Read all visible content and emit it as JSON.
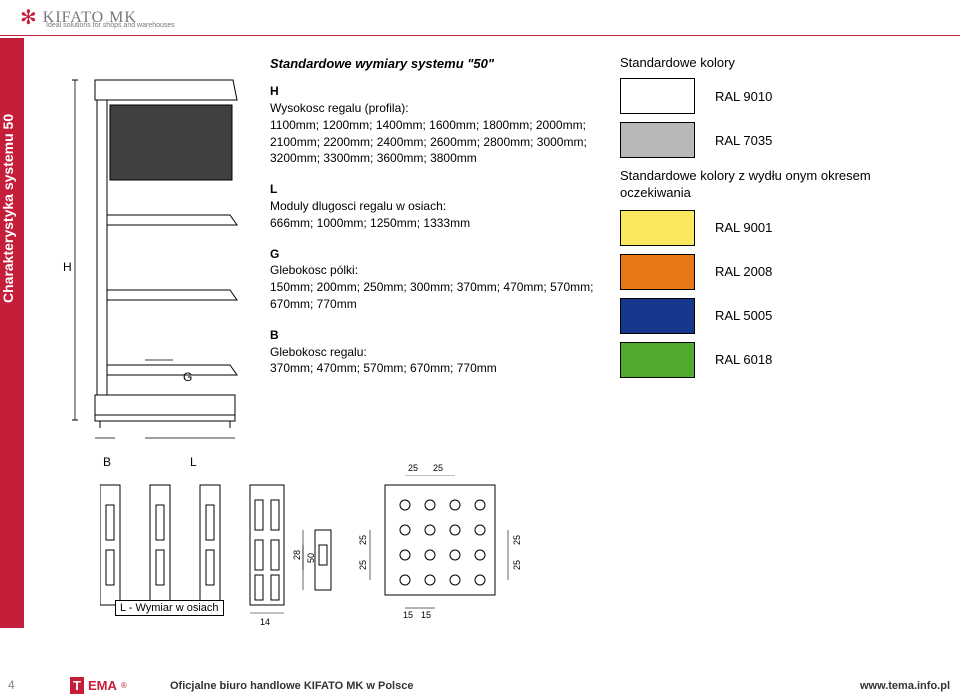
{
  "header": {
    "brand": "KIFATO MK",
    "tagline": "Ideal solutions for shops and warehouses"
  },
  "sidebar": {
    "title": "Charakterystyka systemu 50"
  },
  "specs": {
    "title": "Standardowe wymiary systemu \"50\"",
    "H": {
      "letter": "H",
      "label": "Wysokosc regalu (profila):",
      "values": "1100mm; 1200mm; 1400mm; 1600mm; 1800mm; 2000mm; 2100mm; 2200mm; 2400mm; 2600mm; 2800mm; 3000mm; 3200mm; 3300mm; 3600mm; 3800mm"
    },
    "L": {
      "letter": "L",
      "label": "Moduly dlugosci regalu w osiach:",
      "values": "666mm; 1000mm; 1250mm; 1333mm"
    },
    "G": {
      "letter": "G",
      "label": "Glebokosc pólki:",
      "values": "150mm; 200mm; 250mm; 300mm; 370mm; 470mm; 570mm; 670mm; 770mm"
    },
    "B": {
      "letter": "B",
      "label": "Glebokosc regalu:",
      "values": "370mm; 470mm; 570mm; 670mm; 770mm"
    }
  },
  "colors": {
    "heading": "Standardowe kolory",
    "standard": [
      {
        "hex": "#ffffff",
        "label": "RAL 9010"
      },
      {
        "hex": "#b7b7b7",
        "label": "RAL 7035"
      }
    ],
    "subheading": "Standardowe kolory z wydłu onym okresem oczekiwania",
    "extended": [
      {
        "hex": "#fbe85e",
        "label": "RAL 9001"
      },
      {
        "hex": "#e67817",
        "label": "RAL 2008"
      },
      {
        "hex": "#16388c",
        "label": "RAL 5005"
      },
      {
        "hex": "#4faa2f",
        "label": "RAL 6018"
      }
    ]
  },
  "diagram": {
    "H": "H",
    "G": "G",
    "B": "B",
    "L": "L"
  },
  "caption_L": "L - Wymiar w osiach",
  "profile_dims": {
    "d14": "14",
    "d28": "28",
    "d50": "50",
    "d15a": "15",
    "d15b": "15",
    "d25a": "25",
    "d25b": "25",
    "d25c": "25",
    "d25d": "25",
    "d25e": "25",
    "d25f": "25"
  },
  "footer": {
    "page": "4",
    "tema_t": "T",
    "tema_ema": "EMA",
    "reg": "®",
    "text": "Oficjalne biuro handlowe KIFATO MK w Polsce",
    "url": "www.tema.info.pl"
  }
}
